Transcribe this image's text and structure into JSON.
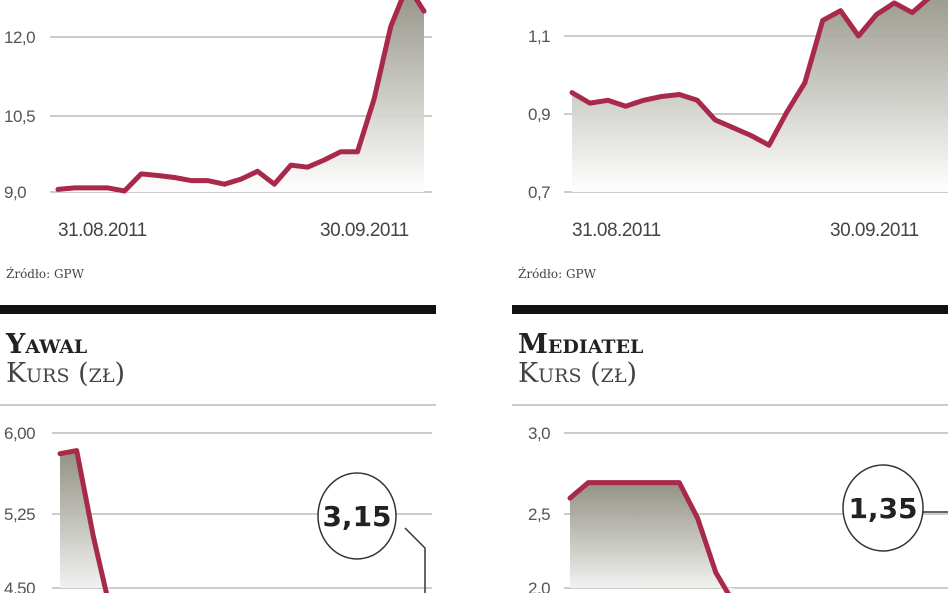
{
  "colors": {
    "line": "#a8294a",
    "area_top": "#8c8c80",
    "area_bottom": "#ffffff",
    "grid": "#999999",
    "rule": "#111111"
  },
  "source_label": "Źródło: GPW",
  "chart_data": [
    {
      "type": "area",
      "title": "",
      "subtitle": "",
      "ylim": [
        9.0,
        13.0
      ],
      "y_ticks": [
        "9,0",
        "10,5",
        "12,0"
      ],
      "x_labels": [
        "31.08.2011",
        "30.09.2011"
      ],
      "series": [
        {
          "values": [
            9.05,
            9.08,
            9.08,
            9.08,
            9.02,
            9.35,
            9.32,
            9.28,
            9.22,
            9.22,
            9.15,
            9.25,
            9.4,
            9.15,
            9.52,
            9.48,
            9.62,
            9.78,
            9.78,
            10.8,
            12.2,
            13.0,
            12.5
          ]
        }
      ],
      "callout": ""
    },
    {
      "type": "area",
      "title": "",
      "subtitle": "",
      "ylim": [
        0.7,
        1.2
      ],
      "y_ticks": [
        "0,7",
        "0,9",
        "1,1"
      ],
      "x_labels": [
        "31.08.2011",
        "30.09.2011"
      ],
      "series": [
        {
          "values": [
            0.955,
            0.928,
            0.935,
            0.92,
            0.935,
            0.945,
            0.95,
            0.935,
            0.885,
            0.865,
            0.845,
            0.82,
            0.905,
            0.98,
            1.14,
            1.165,
            1.1,
            1.155,
            1.185,
            1.16,
            1.2,
            1.25
          ]
        }
      ],
      "callout": ""
    },
    {
      "type": "area",
      "title": "Yawal",
      "subtitle": "Kurs (zł)",
      "ylim": [
        4.5,
        6.0
      ],
      "y_ticks": [
        "4,50",
        "5,25",
        "6,00"
      ],
      "x_labels": [],
      "series": [
        {
          "values": [
            5.8,
            5.83,
            5.0,
            4.3
          ]
        }
      ],
      "callout": "3,15"
    },
    {
      "type": "area",
      "title": "Mediatel",
      "subtitle": "Kurs (zł)",
      "ylim": [
        2.0,
        3.0
      ],
      "y_ticks": [
        "2,0",
        "2,5",
        "3,0"
      ],
      "x_labels": [],
      "series": [
        {
          "values": [
            2.58,
            2.68,
            2.68,
            2.68,
            2.68,
            2.68,
            2.68,
            2.45,
            2.1,
            1.9
          ]
        }
      ],
      "callout": "1,35"
    }
  ]
}
